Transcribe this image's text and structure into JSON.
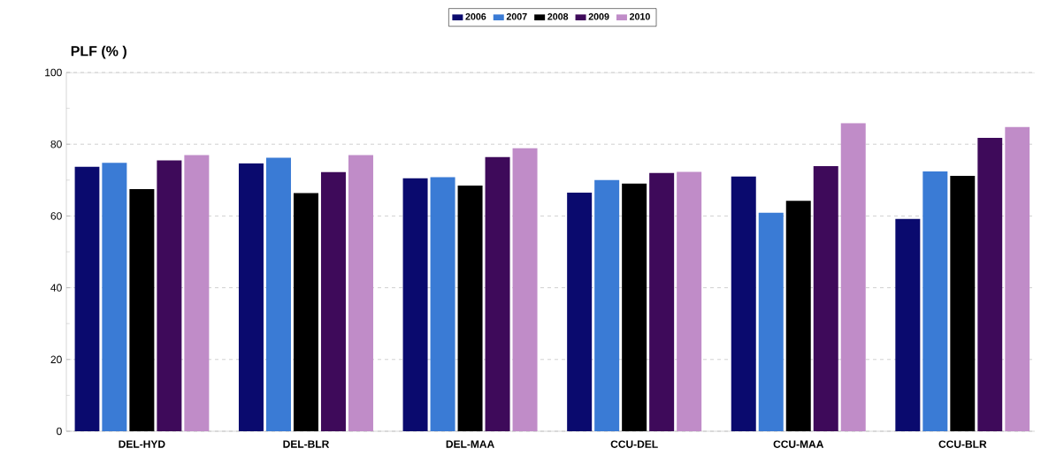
{
  "chart_data": {
    "type": "bar",
    "ylabel": "PLF (% )",
    "categories": [
      "DEL-HYD",
      "DEL-BLR",
      "DEL-MAA",
      "CCU-DEL",
      "CCU-MAA",
      "CCU-BLR"
    ],
    "series": [
      {
        "name": "2006",
        "color": "#0a0a6e",
        "values": [
          73.7,
          74.7,
          70.5,
          66.5,
          71,
          59.2
        ]
      },
      {
        "name": "2007",
        "color": "#3a7bd5",
        "values": [
          74.8,
          76.2,
          70.8,
          70,
          60.9,
          72.4
        ]
      },
      {
        "name": "2008",
        "color": "#000000",
        "values": [
          67.5,
          66.4,
          68.5,
          69,
          64.2,
          71.2
        ]
      },
      {
        "name": "2009",
        "color": "#3e0a5a",
        "values": [
          75.5,
          72.2,
          76.4,
          72,
          73.9,
          81.8
        ]
      },
      {
        "name": "2010",
        "color": "#c08cc8",
        "values": [
          77,
          77,
          78.9,
          72.3,
          85.9,
          84.8
        ]
      }
    ],
    "ylim": [
      0,
      100
    ],
    "yticks": [
      0,
      20,
      40,
      60,
      80,
      100
    ],
    "grid": "y",
    "legend": "top"
  }
}
